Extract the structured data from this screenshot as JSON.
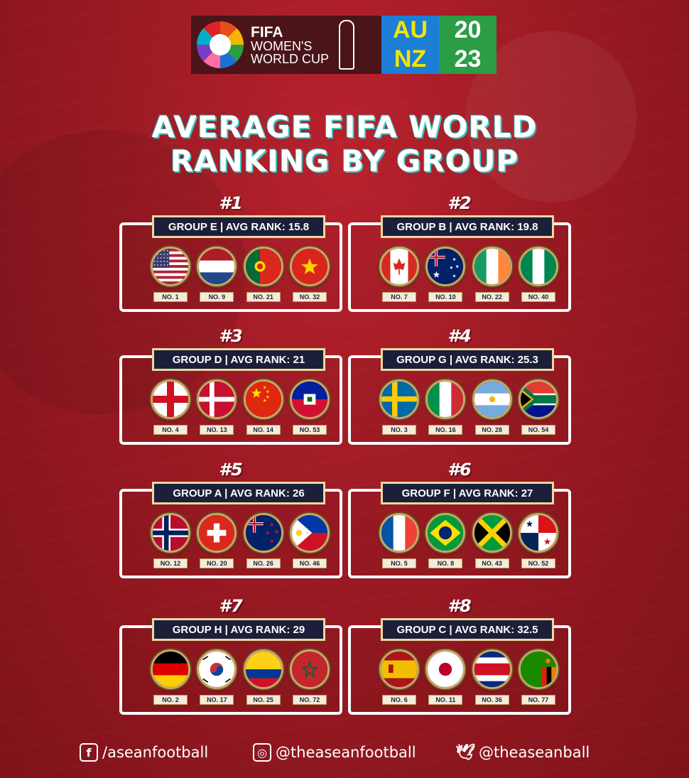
{
  "header": {
    "logo_fifa": "FIFA",
    "logo_line2": "WOMEN'S",
    "logo_line3": "WORLD CUP",
    "logo_au": "AU",
    "logo_20": "20",
    "logo_nz": "NZ",
    "logo_23": "23"
  },
  "title_line1": "AVERAGE FIFA WORLD",
  "title_line2": "RANKING BY GROUP",
  "groups": [
    {
      "rank": "#1",
      "banner": "GROUP E | AVG RANK: 15.8",
      "teams": [
        {
          "flag": "usa",
          "no": "NO. 1"
        },
        {
          "flag": "netherlands",
          "no": "NO. 9"
        },
        {
          "flag": "portugal",
          "no": "NO. 21"
        },
        {
          "flag": "vietnam",
          "no": "NO. 32"
        }
      ]
    },
    {
      "rank": "#2",
      "banner": "GROUP B | AVG RANK: 19.8",
      "teams": [
        {
          "flag": "canada",
          "no": "NO. 7"
        },
        {
          "flag": "australia",
          "no": "NO. 10"
        },
        {
          "flag": "ireland",
          "no": "NO. 22"
        },
        {
          "flag": "nigeria",
          "no": "NO. 40"
        }
      ]
    },
    {
      "rank": "#3",
      "banner": "GROUP D | AVG RANK: 21",
      "teams": [
        {
          "flag": "england",
          "no": "NO. 4"
        },
        {
          "flag": "denmark",
          "no": "NO. 13"
        },
        {
          "flag": "china",
          "no": "NO. 14"
        },
        {
          "flag": "haiti",
          "no": "NO. 53"
        }
      ]
    },
    {
      "rank": "#4",
      "banner": "GROUP G | AVG RANK: 25.3",
      "teams": [
        {
          "flag": "sweden",
          "no": "NO. 3"
        },
        {
          "flag": "italy",
          "no": "NO. 16"
        },
        {
          "flag": "argentina",
          "no": "NO. 28"
        },
        {
          "flag": "southafrica",
          "no": "NO. 54"
        }
      ]
    },
    {
      "rank": "#5",
      "banner": "GROUP A | AVG RANK: 26",
      "teams": [
        {
          "flag": "norway",
          "no": "NO. 12"
        },
        {
          "flag": "switzerland",
          "no": "NO. 20"
        },
        {
          "flag": "newzealand",
          "no": "NO. 26"
        },
        {
          "flag": "philippines",
          "no": "NO. 46"
        }
      ]
    },
    {
      "rank": "#6",
      "banner": "GROUP F | AVG RANK: 27",
      "teams": [
        {
          "flag": "france",
          "no": "NO. 5"
        },
        {
          "flag": "brazil",
          "no": "NO. 8"
        },
        {
          "flag": "jamaica",
          "no": "NO. 43"
        },
        {
          "flag": "panama",
          "no": "NO. 52"
        }
      ]
    },
    {
      "rank": "#7",
      "banner": "GROUP H | AVG RANK: 29",
      "teams": [
        {
          "flag": "germany",
          "no": "NO. 2"
        },
        {
          "flag": "korea",
          "no": "NO. 17"
        },
        {
          "flag": "colombia",
          "no": "NO. 25"
        },
        {
          "flag": "morocco",
          "no": "NO. 72"
        }
      ]
    },
    {
      "rank": "#8",
      "banner": "GROUP C | AVG RANK: 32.5",
      "teams": [
        {
          "flag": "spain",
          "no": "NO. 6"
        },
        {
          "flag": "japan",
          "no": "NO. 11"
        },
        {
          "flag": "costarica",
          "no": "NO. 36"
        },
        {
          "flag": "zambia",
          "no": "NO. 77"
        }
      ]
    }
  ],
  "footer": {
    "facebook_icon": "facebook-icon",
    "facebook": "/aseanfootball",
    "instagram_icon": "instagram-icon",
    "instagram": "@theaseanfootball",
    "twitter_icon": "twitter-icon",
    "twitter": "@theaseanball"
  }
}
